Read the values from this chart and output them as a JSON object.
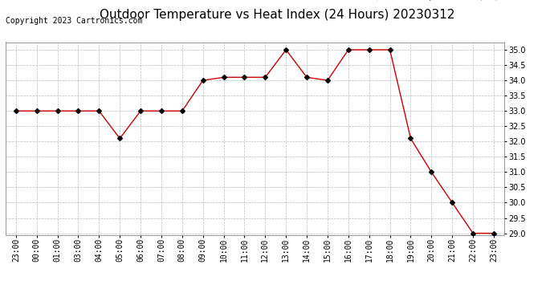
{
  "title": "Outdoor Temperature vs Heat Index (24 Hours) 20230312",
  "copyright": "Copyright 2023 Cartronics.com",
  "legend_heat_index": "Heat Index (°F)",
  "legend_temperature": "Temperature (°F)",
  "x_labels": [
    "23:00",
    "00:00",
    "01:00",
    "03:00",
    "04:00",
    "05:00",
    "06:00",
    "07:00",
    "08:00",
    "09:00",
    "10:00",
    "11:00",
    "12:00",
    "13:00",
    "14:00",
    "15:00",
    "16:00",
    "17:00",
    "18:00",
    "19:00",
    "20:00",
    "21:00",
    "22:00",
    "23:00"
  ],
  "temperature": [
    33.0,
    33.0,
    33.0,
    33.0,
    33.0,
    32.1,
    33.0,
    33.0,
    33.0,
    34.0,
    34.1,
    34.1,
    34.1,
    35.0,
    34.1,
    34.0,
    35.0,
    35.0,
    35.0,
    32.1,
    31.0,
    30.0,
    29.0,
    29.0
  ],
  "ylim": [
    28.95,
    35.25
  ],
  "yticks": [
    29.0,
    29.5,
    30.0,
    30.5,
    31.0,
    31.5,
    32.0,
    32.5,
    33.0,
    33.5,
    34.0,
    34.5,
    35.0
  ],
  "line_color": "#cc0000",
  "marker": "D",
  "marker_color": "#000000",
  "background_color": "#ffffff",
  "grid_color": "#bbbbbb",
  "title_fontsize": 11,
  "axis_fontsize": 7,
  "legend_fontsize": 8,
  "copyright_fontsize": 7
}
